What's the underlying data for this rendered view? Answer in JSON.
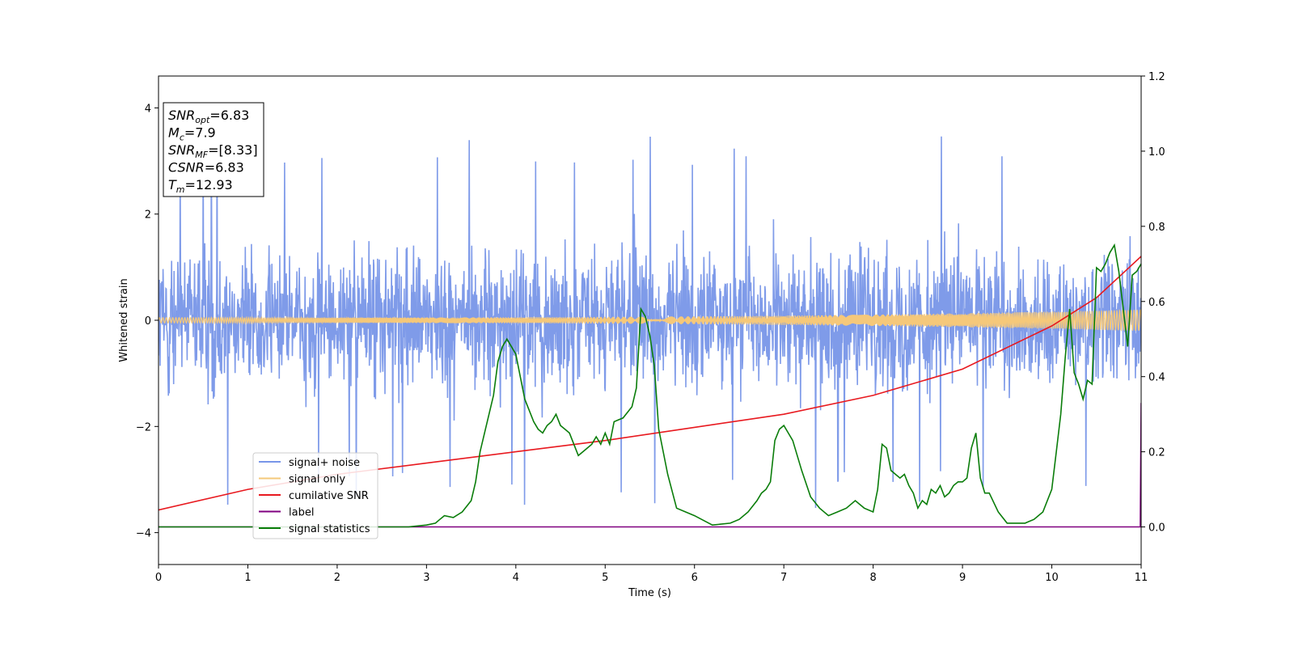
{
  "chart_data": {
    "type": "line",
    "xlabel": "Time (s)",
    "ylabel": "Whitened strain",
    "xlim": [
      0,
      11
    ],
    "ylim_left": [
      -4.6,
      4.6
    ],
    "ylim_right": [
      -0.1,
      1.2
    ],
    "xticks": [
      0,
      1,
      2,
      3,
      4,
      5,
      6,
      7,
      8,
      9,
      10,
      11
    ],
    "yticks_left": [
      -4,
      -2,
      0,
      2,
      4
    ],
    "yticks_left_labels": [
      "−4",
      "−2",
      "0",
      "2",
      "4"
    ],
    "yticks_right": [
      0.0,
      0.2,
      0.4,
      0.6,
      0.8,
      1.0,
      1.2
    ],
    "yticks_right_labels": [
      "0.0",
      "0.2",
      "0.4",
      "0.6",
      "0.8",
      "1.0",
      "1.2"
    ],
    "grid": false,
    "legend_position": "lower-left",
    "annotation": {
      "lines": [
        {
          "base": "SNR",
          "sub": "opt",
          "rest": "=6.83"
        },
        {
          "base": "M",
          "sub": "c",
          "rest": "=7.9"
        },
        {
          "base": "SNR",
          "sub": "MF",
          "rest": "=[8.33]"
        },
        {
          "base": "CSNR",
          "sub": "",
          "rest": "=6.83"
        },
        {
          "base": "T",
          "sub": "m",
          "rest": "=12.93"
        }
      ]
    },
    "series": [
      {
        "name": "signal+ noise",
        "color": "#7896e8",
        "axis": "left",
        "kind": "noise",
        "typical_range": [
          -2.3,
          2.3
        ],
        "peak_max": 4.15,
        "peak_min": -4.1
      },
      {
        "name": "signal only",
        "color": "#f5c87a",
        "axis": "left",
        "kind": "chirp",
        "amplitude_start": 0.05,
        "amplitude_end": 0.2
      },
      {
        "name": "cumilative SNR",
        "color": "#e8191f",
        "axis": "right",
        "x": [
          0,
          1,
          2,
          3,
          4,
          5,
          6,
          7,
          8,
          9,
          10,
          10.5,
          11
        ],
        "y": [
          0.045,
          0.1,
          0.14,
          0.17,
          0.2,
          0.23,
          0.265,
          0.3,
          0.35,
          0.42,
          0.535,
          0.61,
          0.72
        ]
      },
      {
        "name": "label",
        "color": "#800080",
        "axis": "right",
        "x": [
          0,
          10.99,
          11.0
        ],
        "y": [
          0,
          0,
          0.33
        ]
      },
      {
        "name": "signal statistics",
        "color": "#0a7d0a",
        "axis": "right",
        "x": [
          0,
          0.5,
          1,
          1.5,
          2,
          2.5,
          2.8,
          3.0,
          3.1,
          3.15,
          3.2,
          3.3,
          3.4,
          3.5,
          3.55,
          3.6,
          3.75,
          3.8,
          3.85,
          3.9,
          4.0,
          4.05,
          4.1,
          4.2,
          4.25,
          4.3,
          4.35,
          4.4,
          4.45,
          4.5,
          4.55,
          4.6,
          4.7,
          4.75,
          4.8,
          4.85,
          4.9,
          4.95,
          5.0,
          5.05,
          5.1,
          5.2,
          5.3,
          5.35,
          5.4,
          5.45,
          5.5,
          5.55,
          5.6,
          5.7,
          5.8,
          5.9,
          6.0,
          6.2,
          6.4,
          6.5,
          6.6,
          6.7,
          6.75,
          6.8,
          6.85,
          6.9,
          6.95,
          7.0,
          7.05,
          7.1,
          7.2,
          7.3,
          7.4,
          7.5,
          7.6,
          7.7,
          7.8,
          7.9,
          8.0,
          8.05,
          8.1,
          8.15,
          8.2,
          8.3,
          8.35,
          8.4,
          8.45,
          8.5,
          8.55,
          8.6,
          8.65,
          8.7,
          8.75,
          8.8,
          8.85,
          8.9,
          8.95,
          9.0,
          9.05,
          9.1,
          9.15,
          9.2,
          9.25,
          9.3,
          9.4,
          9.5,
          9.6,
          9.7,
          9.8,
          9.9,
          10.0,
          10.05,
          10.1,
          10.15,
          10.2,
          10.25,
          10.3,
          10.35,
          10.4,
          10.45,
          10.5,
          10.55,
          10.6,
          10.65,
          10.7,
          10.75,
          10.8,
          10.85,
          10.9,
          10.95,
          11.0
        ],
        "y": [
          0,
          0.0,
          0.0,
          0.0,
          0.0,
          0.0,
          0.0,
          0.005,
          0.01,
          0.02,
          0.03,
          0.025,
          0.04,
          0.07,
          0.12,
          0.2,
          0.35,
          0.44,
          0.48,
          0.5,
          0.46,
          0.4,
          0.34,
          0.28,
          0.26,
          0.25,
          0.27,
          0.28,
          0.3,
          0.27,
          0.26,
          0.25,
          0.19,
          0.2,
          0.21,
          0.22,
          0.24,
          0.22,
          0.25,
          0.22,
          0.28,
          0.29,
          0.32,
          0.37,
          0.58,
          0.56,
          0.51,
          0.43,
          0.26,
          0.14,
          0.05,
          0.04,
          0.03,
          0.005,
          0.01,
          0.02,
          0.04,
          0.07,
          0.09,
          0.1,
          0.12,
          0.23,
          0.26,
          0.27,
          0.25,
          0.23,
          0.15,
          0.08,
          0.05,
          0.03,
          0.04,
          0.05,
          0.07,
          0.05,
          0.04,
          0.1,
          0.22,
          0.21,
          0.15,
          0.13,
          0.14,
          0.11,
          0.09,
          0.05,
          0.07,
          0.06,
          0.1,
          0.09,
          0.11,
          0.08,
          0.09,
          0.11,
          0.12,
          0.12,
          0.13,
          0.21,
          0.25,
          0.13,
          0.09,
          0.09,
          0.04,
          0.01,
          0.01,
          0.01,
          0.02,
          0.04,
          0.1,
          0.2,
          0.3,
          0.45,
          0.58,
          0.41,
          0.38,
          0.34,
          0.39,
          0.38,
          0.69,
          0.68,
          0.7,
          0.73,
          0.75,
          0.68,
          0.58,
          0.48,
          0.67,
          0.68,
          0.7
        ]
      }
    ]
  }
}
